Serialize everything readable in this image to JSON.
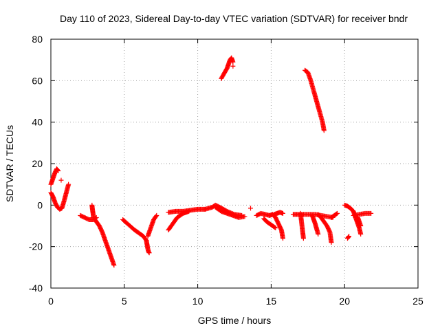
{
  "chart_data": {
    "type": "scatter",
    "title": "Day 110 of 2023, Sidereal Day-to-day VTEC variation (SDTVAR) for receiver bndr",
    "xlabel": "GPS time / hours",
    "ylabel": "SDTVAR / TECUs",
    "xlim": [
      0,
      25
    ],
    "ylim": [
      -40,
      80
    ],
    "xticks": [
      0,
      5,
      10,
      15,
      20,
      25
    ],
    "yticks": [
      -40,
      -20,
      0,
      20,
      40,
      60,
      80
    ],
    "grid": true,
    "marker": "+",
    "color": "#ff0000",
    "series": [
      {
        "name": "seg01",
        "x": [
          0.0,
          0.1,
          0.2,
          0.3,
          0.4,
          0.5
        ],
        "y": [
          10,
          12,
          14,
          16,
          17.5,
          16.5
        ]
      },
      {
        "name": "seg02",
        "x": [
          0.0,
          0.15,
          0.3,
          0.45,
          0.6,
          0.75,
          0.9,
          1.05,
          1.2
        ],
        "y": [
          6,
          4,
          1,
          -1,
          -2,
          -1.5,
          2,
          6,
          10
        ]
      },
      {
        "name": "seg03",
        "x": [
          0.7
        ],
        "y": [
          12
        ]
      },
      {
        "name": "seg04",
        "x": [
          2.0,
          2.3,
          2.6,
          2.9,
          3.1
        ],
        "y": [
          -5,
          -6,
          -7,
          -7,
          -6
        ]
      },
      {
        "name": "seg05",
        "x": [
          2.8,
          2.82,
          2.85,
          2.88,
          2.9
        ],
        "y": [
          0,
          -1.5,
          -3,
          -4.5,
          -6
        ]
      },
      {
        "name": "seg06",
        "x": [
          3.0,
          3.3,
          3.5,
          3.7,
          3.9,
          4.1,
          4.3
        ],
        "y": [
          -7,
          -10,
          -13,
          -17,
          -21,
          -25,
          -29
        ]
      },
      {
        "name": "seg07",
        "x": [
          4.9,
          5.3,
          5.7,
          6.0,
          6.3,
          6.5
        ],
        "y": [
          -7,
          -9.5,
          -12,
          -13.5,
          -15,
          -17
        ]
      },
      {
        "name": "seg08",
        "x": [
          6.5,
          6.55,
          6.6,
          6.65,
          6.7
        ],
        "y": [
          -17,
          -19,
          -21,
          -22.5,
          -23
        ]
      },
      {
        "name": "seg09",
        "x": [
          6.6,
          6.8,
          7.0,
          7.2
        ],
        "y": [
          -15,
          -11,
          -7,
          -5
        ]
      },
      {
        "name": "seg10",
        "x": [
          8.0,
          8.2,
          8.4,
          8.6,
          8.8,
          9.0,
          9.2,
          9.4
        ],
        "y": [
          -12,
          -10,
          -8,
          -6,
          -5,
          -4,
          -3.5,
          -3
        ]
      },
      {
        "name": "seg11",
        "x": [
          8.0,
          8.5,
          9.0,
          9.5,
          10.0,
          10.5
        ],
        "y": [
          -3.5,
          -3,
          -3,
          -2.5,
          -2,
          -2
        ]
      },
      {
        "name": "seg12",
        "x": [
          10.5,
          11.0,
          11.2,
          11.5,
          12.0,
          12.5,
          13.0
        ],
        "y": [
          -2,
          -1,
          0,
          -1,
          -3,
          -4.5,
          -5
        ]
      },
      {
        "name": "seg13",
        "x": [
          11.2,
          11.6,
          12.0,
          12.4,
          12.8,
          13.2
        ],
        "y": [
          -1,
          -3,
          -4,
          -5,
          -6,
          -5.5
        ]
      },
      {
        "name": "seg14",
        "x": [
          13.6
        ],
        "y": [
          -1.5
        ]
      },
      {
        "name": "seg15",
        "x": [
          11.6,
          11.8,
          12.0,
          12.1,
          12.2,
          12.3,
          12.4
        ],
        "y": [
          61,
          63.5,
          66,
          68,
          70,
          71,
          69
        ]
      },
      {
        "name": "seg16",
        "x": [
          12.4
        ],
        "y": [
          67
        ]
      },
      {
        "name": "seg17",
        "x": [
          14.0,
          14.3,
          14.6,
          14.9
        ],
        "y": [
          -5,
          -4,
          -4.5,
          -5
        ]
      },
      {
        "name": "seg18",
        "x": [
          14.5,
          14.7,
          14.9,
          15.1,
          15.3
        ],
        "y": [
          -6.5,
          -8,
          -9,
          -10,
          -11
        ]
      },
      {
        "name": "seg19",
        "x": [
          14.9,
          15.1,
          15.3,
          15.5,
          15.7,
          15.8
        ],
        "y": [
          -5,
          -4.5,
          -6,
          -9,
          -12,
          -16
        ]
      },
      {
        "name": "seg20",
        "x": [
          15.2,
          15.4,
          15.6,
          15.8
        ],
        "y": [
          -4.5,
          -4,
          -3.5,
          -4
        ]
      },
      {
        "name": "seg21",
        "x": [
          16.5,
          16.8,
          17.0,
          17.2
        ],
        "y": [
          -4.5,
          -4.5,
          -4.5,
          -4.5
        ]
      },
      {
        "name": "seg22",
        "x": [
          17.0,
          17.05,
          17.1,
          17.15,
          17.2
        ],
        "y": [
          -4,
          -7,
          -10,
          -13,
          -16
        ]
      },
      {
        "name": "seg23",
        "x": [
          17.2,
          17.6,
          18.0,
          18.4,
          18.8,
          19.2
        ],
        "y": [
          -4.5,
          -4.5,
          -4.5,
          -5,
          -5.5,
          -6
        ]
      },
      {
        "name": "seg24",
        "x": [
          17.8,
          17.9,
          18.0,
          18.1,
          18.2
        ],
        "y": [
          -5,
          -7,
          -9,
          -11.5,
          -14
        ]
      },
      {
        "name": "seg25",
        "x": [
          18.2,
          18.4,
          18.6,
          18.8,
          19.0,
          19.1
        ],
        "y": [
          -4.5,
          -6,
          -8,
          -10,
          -13,
          -18
        ]
      },
      {
        "name": "seg26",
        "x": [
          19.1,
          19.3,
          19.5
        ],
        "y": [
          -6,
          -5,
          -4
        ]
      },
      {
        "name": "seg27",
        "x": [
          17.3,
          17.5,
          17.7,
          17.9,
          18.1,
          18.3,
          18.5,
          18.6
        ],
        "y": [
          65,
          64,
          60,
          55,
          50,
          45,
          40,
          36
        ]
      },
      {
        "name": "seg28",
        "x": [
          20.0,
          20.2,
          20.4,
          20.6
        ],
        "y": [
          0,
          -0.5,
          -1.5,
          -3
        ]
      },
      {
        "name": "seg29",
        "x": [
          20.2,
          20.3
        ],
        "y": [
          -16,
          -15
        ]
      },
      {
        "name": "seg30",
        "x": [
          20.6,
          20.7,
          20.8,
          20.9,
          21.0,
          21.1
        ],
        "y": [
          -3,
          -5,
          -7,
          -9,
          -11,
          -14
        ]
      },
      {
        "name": "seg31",
        "x": [
          20.6,
          21.0,
          21.4,
          21.8
        ],
        "y": [
          -5,
          -4.5,
          -4,
          -4
        ]
      },
      {
        "name": "seg32",
        "x": [
          20.9,
          21.0,
          21.1
        ],
        "y": [
          -6,
          -8,
          -10
        ]
      }
    ]
  }
}
